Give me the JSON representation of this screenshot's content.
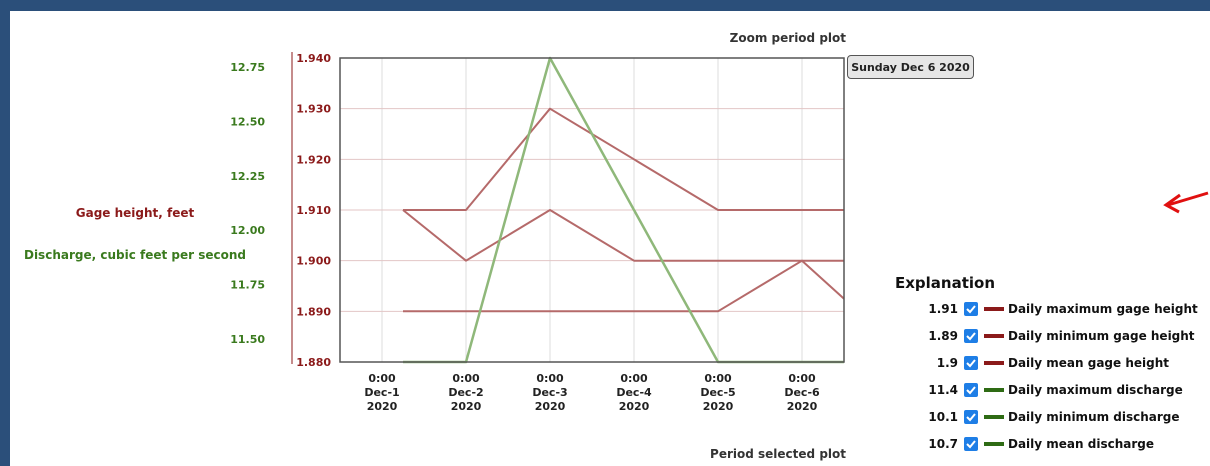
{
  "chart_data": {
    "type": "line",
    "top_title": "Zoom period plot",
    "bottom_title": "Period selected plot",
    "tooltip": "Sunday Dec 6 2020",
    "ylabel_left_gage": "Gage height, feet",
    "ylabel_left_discharge": "Discharge, cubic feet per second",
    "gage_axis": {
      "range": [
        1.88,
        1.94
      ],
      "ticks": [
        "1.880",
        "1.890",
        "1.900",
        "1.910",
        "1.920",
        "1.930",
        "1.940"
      ],
      "color": "#8b1a1a"
    },
    "discharge_axis": {
      "ticks": [
        "11.50",
        "11.75",
        "12.00",
        "12.25",
        "12.50",
        "12.75"
      ],
      "color": "#3a7a1e"
    },
    "x_ticks": [
      {
        "time": "0:00",
        "date": "Dec-1",
        "year": "2020"
      },
      {
        "time": "0:00",
        "date": "Dec-2",
        "year": "2020"
      },
      {
        "time": "0:00",
        "date": "Dec-3",
        "year": "2020"
      },
      {
        "time": "0:00",
        "date": "Dec-4",
        "year": "2020"
      },
      {
        "time": "0:00",
        "date": "Dec-5",
        "year": "2020"
      },
      {
        "time": "0:00",
        "date": "Dec-6",
        "year": "2020"
      }
    ],
    "x": [
      0.75,
      1.5,
      2.5,
      3.5,
      4.5,
      5.5,
      6.0
    ],
    "series": [
      {
        "values": [
          1.91,
          1.91,
          1.93,
          1.92,
          1.91,
          1.91,
          1.91
        ],
        "color": "#b56a6a",
        "axis": "gage"
      },
      {
        "values": [
          1.91,
          1.9,
          1.91,
          1.9,
          1.9,
          1.9,
          1.9
        ],
        "color": "#b56a6a",
        "axis": "gage"
      },
      {
        "values": [
          1.89,
          1.89,
          1.89,
          1.89,
          1.89,
          1.9,
          1.8925
        ],
        "color": "#b56a6a",
        "axis": "gage"
      },
      {
        "values": [
          1.88,
          1.88,
          1.94,
          1.91,
          1.88,
          1.88,
          1.88
        ],
        "color": "#8fb87a",
        "axis": "gage"
      }
    ]
  },
  "legend": {
    "title": "Explanation",
    "items": [
      {
        "value": "1.91",
        "label": "Daily maximum gage height",
        "color": "#8b1a1a"
      },
      {
        "value": "1.89",
        "label": "Daily minimum gage height",
        "color": "#8b1a1a"
      },
      {
        "value": "1.9",
        "label": "Daily mean gage height",
        "color": "#8b1a1a"
      },
      {
        "value": "11.4",
        "label": "Daily maximum discharge",
        "color": "#2e6b14"
      },
      {
        "value": "10.1",
        "label": "Daily minimum discharge",
        "color": "#2e6b14"
      },
      {
        "value": "10.7",
        "label": "Daily mean discharge",
        "color": "#2e6b14"
      }
    ]
  },
  "checkbox_icon": "check-icon"
}
